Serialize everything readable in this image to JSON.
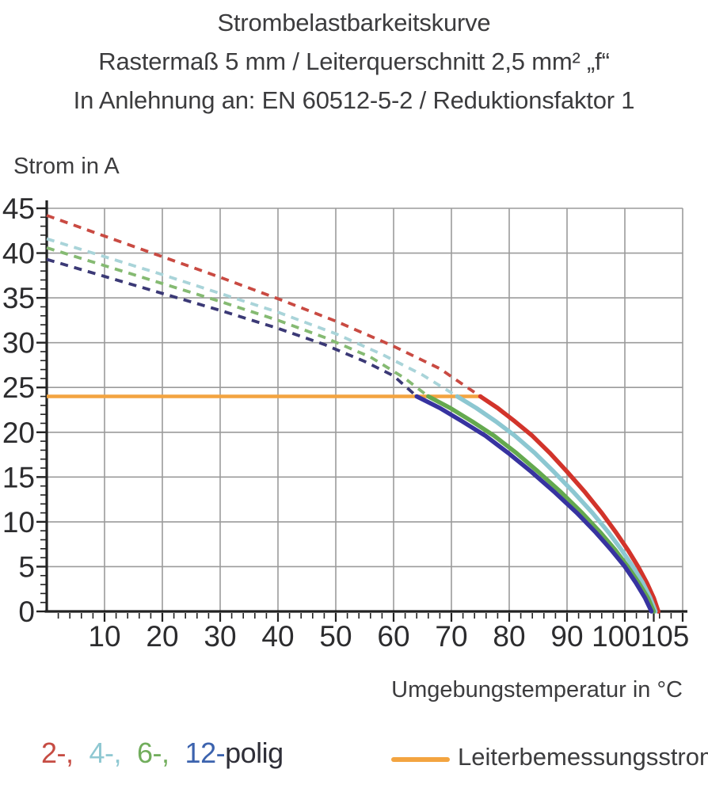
{
  "title": {
    "line1": "Strombelastbarkeitskurve",
    "line2": "Rastermaß 5 mm / Leiterquerschnitt 2,5 mm² „f“",
    "line3": "In Anlehnung an: EN 60512-5-2 / Reduktionsfaktor 1"
  },
  "chart_data": {
    "type": "line",
    "ylabel": "Strom in A",
    "xlabel": "Umgebungstemperatur in °C",
    "x_range": [
      0,
      110
    ],
    "y_range": [
      0,
      45
    ],
    "grid": "on",
    "grid_color": "#9b9b9b",
    "axis_color": "#222222",
    "x_gridline_step": 10,
    "y_gridline_step": 5,
    "x_minor_tick_step": 2,
    "y_minor_tick_step": 1,
    "x_tick_labels": [
      {
        "v": 10,
        "label": "10",
        "dx": 0
      },
      {
        "v": 20,
        "label": "20",
        "dx": 0
      },
      {
        "v": 30,
        "label": "30",
        "dx": 0
      },
      {
        "v": 40,
        "label": "40",
        "dx": 0
      },
      {
        "v": 50,
        "label": "50",
        "dx": 0
      },
      {
        "v": 60,
        "label": "60",
        "dx": 0
      },
      {
        "v": 70,
        "label": "70",
        "dx": 0
      },
      {
        "v": 80,
        "label": "80",
        "dx": 0
      },
      {
        "v": 90,
        "label": "90",
        "dx": 0
      },
      {
        "v": 100,
        "label": "100",
        "dx": -11
      },
      {
        "v": 105,
        "label": "105",
        "dx": 14
      }
    ],
    "y_tick_labels": [
      {
        "v": 45,
        "label": "45"
      },
      {
        "v": 40,
        "label": "40"
      },
      {
        "v": 35,
        "label": "35"
      },
      {
        "v": 30,
        "label": "30"
      },
      {
        "v": 25,
        "label": "25"
      },
      {
        "v": 20,
        "label": "20"
      },
      {
        "v": 15,
        "label": "15"
      },
      {
        "v": 10,
        "label": "10"
      },
      {
        "v": 5,
        "label": "5"
      },
      {
        "v": 0,
        "label": "0"
      }
    ],
    "reference_line": {
      "label": "Leiterbemessungsstrom",
      "value": 24,
      "x_start": 0,
      "x_end": 75.3,
      "color": "#f3a440"
    },
    "series": [
      {
        "name": "2-polig",
        "solid_color": "#d2342b",
        "dash_color": "#c94a42",
        "start_current": 44.2,
        "knee_temp": 75,
        "end_temp": 105.8,
        "dashed_points": [
          [
            0,
            44.2
          ],
          [
            10,
            41.9
          ],
          [
            20,
            39.6
          ],
          [
            30,
            37.3
          ],
          [
            40,
            34.9
          ],
          [
            50,
            32.4
          ],
          [
            60,
            29.6
          ],
          [
            68,
            27.1
          ],
          [
            75,
            24
          ]
        ],
        "solid_points": [
          [
            75,
            24
          ],
          [
            78,
            22.7
          ],
          [
            81,
            21.2
          ],
          [
            84,
            19.6
          ],
          [
            87,
            17.7
          ],
          [
            90,
            15.6
          ],
          [
            93,
            13.4
          ],
          [
            96,
            11.0
          ],
          [
            98.5,
            8.8
          ],
          [
            100.5,
            6.9
          ],
          [
            102.3,
            5.0
          ],
          [
            103.8,
            3.2
          ],
          [
            105.0,
            1.5
          ],
          [
            105.8,
            0
          ]
        ]
      },
      {
        "name": "4-polig",
        "solid_color": "#8cc7d1",
        "dash_color": "#a9d4d9",
        "start_current": 41.6,
        "knee_temp": 71,
        "end_temp": 105.3,
        "dashed_points": [
          [
            0,
            41.6
          ],
          [
            10,
            39.6
          ],
          [
            20,
            37.6
          ],
          [
            30,
            35.5
          ],
          [
            40,
            33.4
          ],
          [
            50,
            31.0
          ],
          [
            58,
            28.7
          ],
          [
            65,
            26.4
          ],
          [
            71,
            24
          ]
        ],
        "solid_points": [
          [
            71,
            24
          ],
          [
            74.3,
            22.7
          ],
          [
            77.7,
            21.2
          ],
          [
            81.0,
            19.6
          ],
          [
            84.4,
            17.7
          ],
          [
            87.7,
            15.6
          ],
          [
            91.0,
            13.4
          ],
          [
            94.4,
            11.0
          ],
          [
            97.2,
            8.8
          ],
          [
            99.4,
            6.9
          ],
          [
            101.4,
            5.0
          ],
          [
            103.1,
            3.2
          ],
          [
            104.4,
            1.5
          ],
          [
            105.3,
            0
          ]
        ]
      },
      {
        "name": "6-polig",
        "solid_color": "#64a94f",
        "dash_color": "#85ba72",
        "start_current": 40.6,
        "knee_temp": 66,
        "end_temp": 105.0,
        "dashed_points": [
          [
            0,
            40.6
          ],
          [
            10,
            38.6
          ],
          [
            20,
            36.6
          ],
          [
            30,
            34.6
          ],
          [
            40,
            32.5
          ],
          [
            48,
            30.6
          ],
          [
            56,
            28.4
          ],
          [
            62,
            26.0
          ],
          [
            66,
            24
          ]
        ],
        "solid_points": [
          [
            66,
            24
          ],
          [
            69.8,
            22.7
          ],
          [
            73.6,
            21.2
          ],
          [
            77.4,
            19.6
          ],
          [
            81.2,
            17.7
          ],
          [
            85.0,
            15.6
          ],
          [
            88.8,
            13.4
          ],
          [
            92.6,
            11.0
          ],
          [
            95.8,
            8.8
          ],
          [
            98.3,
            6.9
          ],
          [
            100.5,
            5.0
          ],
          [
            102.4,
            3.2
          ],
          [
            104.0,
            1.5
          ],
          [
            105.0,
            0
          ]
        ]
      },
      {
        "name": "12-polig",
        "solid_color": "#3733a0",
        "dash_color": "#3b3976",
        "start_current": 39.3,
        "knee_temp": 64,
        "end_temp": 104.6,
        "dashed_points": [
          [
            0,
            39.3
          ],
          [
            10,
            37.4
          ],
          [
            20,
            35.5
          ],
          [
            30,
            33.6
          ],
          [
            40,
            31.6
          ],
          [
            48,
            29.8
          ],
          [
            55,
            27.9
          ],
          [
            60,
            26.3
          ],
          [
            64,
            24
          ]
        ],
        "solid_points": [
          [
            64,
            24
          ],
          [
            68.0,
            22.7
          ],
          [
            71.9,
            21.2
          ],
          [
            75.9,
            19.6
          ],
          [
            79.8,
            17.7
          ],
          [
            83.8,
            15.6
          ],
          [
            87.7,
            13.4
          ],
          [
            91.7,
            11.0
          ],
          [
            95.0,
            8.8
          ],
          [
            97.6,
            6.9
          ],
          [
            100.0,
            5.0
          ],
          [
            101.9,
            3.2
          ],
          [
            103.5,
            1.5
          ],
          [
            104.6,
            0
          ]
        ]
      }
    ]
  },
  "legend": {
    "items": [
      {
        "label": "2-,",
        "color": "#c64c43"
      },
      {
        "label": "4-,",
        "color": "#8fc8d2"
      },
      {
        "label": "6-,",
        "color": "#71ad5c"
      },
      {
        "label": "12-",
        "color": "#3c63ae"
      },
      {
        "label": "polig",
        "color": "#2f2f38"
      }
    ],
    "rated_current_label": "Leiterbemessungsstrom",
    "rated_current_color": "#f3a440"
  }
}
